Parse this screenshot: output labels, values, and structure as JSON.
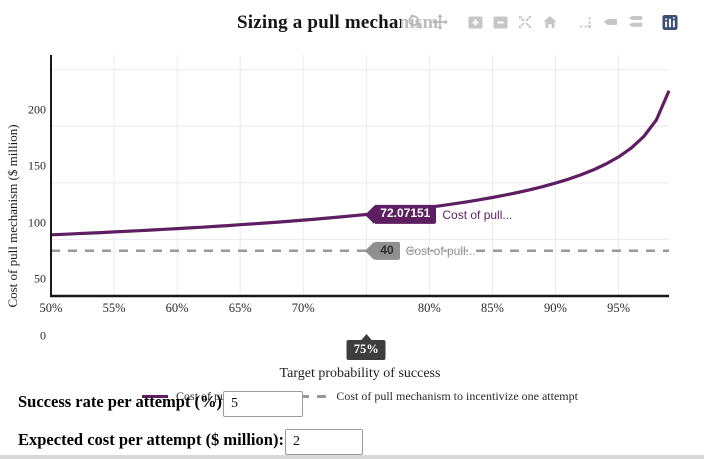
{
  "header": {
    "title": "Sizing a pull mechanism"
  },
  "modebar": {
    "icons": [
      "zoom",
      "pan",
      "zoom-in",
      "zoom-out",
      "autoscale",
      "reset-axes",
      "toggle-spikelines",
      "hover-closest",
      "hover-compare",
      "plotly-logo"
    ],
    "logo_color": "#3e4e78",
    "icon_color": "#b9b9b9"
  },
  "chart_data": {
    "type": "line",
    "title": "Sizing a pull mechanism",
    "xlabel": "Target probability of success",
    "ylabel": "Cost of pull mechanism ($ million)",
    "xlim": [
      50,
      99
    ],
    "ylim": [
      0,
      213
    ],
    "grid": true,
    "legend_position": "bottom-center",
    "x_ticks": [
      "50%",
      "55%",
      "60%",
      "65%",
      "70%",
      "75%",
      "80%",
      "85%",
      "90%",
      "95%"
    ],
    "y_ticks": [
      "0",
      "50",
      "100",
      "150",
      "200"
    ],
    "selected_x_tick": "75%",
    "series": [
      {
        "name": "Cost of pull mechanism",
        "color": "#5d1f62",
        "style": "solid",
        "x": [
          50,
          51,
          52,
          53,
          54,
          55,
          56,
          57,
          58,
          59,
          60,
          61,
          62,
          63,
          64,
          65,
          66,
          67,
          68,
          69,
          70,
          71,
          72,
          73,
          74,
          75,
          76,
          77,
          78,
          79,
          80,
          81,
          82,
          83,
          84,
          85,
          86,
          87,
          88,
          89,
          90,
          91,
          92,
          93,
          94,
          95,
          96,
          97,
          98,
          99
        ],
        "y": [
          54.05,
          54.54,
          55.04,
          55.55,
          56.07,
          56.61,
          57.16,
          57.73,
          58.32,
          58.92,
          59.55,
          60.19,
          60.85,
          61.54,
          62.24,
          62.98,
          63.73,
          64.52,
          65.34,
          66.18,
          67.06,
          67.98,
          68.94,
          69.94,
          70.98,
          72.07,
          73.22,
          74.42,
          75.69,
          77.03,
          78.44,
          79.94,
          81.54,
          83.24,
          85.07,
          87.03,
          89.14,
          91.44,
          93.95,
          96.7,
          99.76,
          103.18,
          107.05,
          111.49,
          116.7,
          122.96,
          130.74,
          140.95,
          155.65,
          181.38
        ]
      },
      {
        "name": "Cost of pull mechanism to incentivize one attempt",
        "color": "#999999",
        "style": "dashed",
        "y_const": 40
      }
    ],
    "hover": [
      {
        "x": 75,
        "value": "72.07151",
        "text": "Cost of pull..."
      },
      {
        "x": 75,
        "value": "40",
        "text": "Cost of pull..."
      }
    ]
  },
  "controls": {
    "success_rate": {
      "label": "Success rate per attempt (%):",
      "value": "5"
    },
    "expected_cost": {
      "label": "Expected cost per attempt ($ million):",
      "value": "2"
    }
  }
}
